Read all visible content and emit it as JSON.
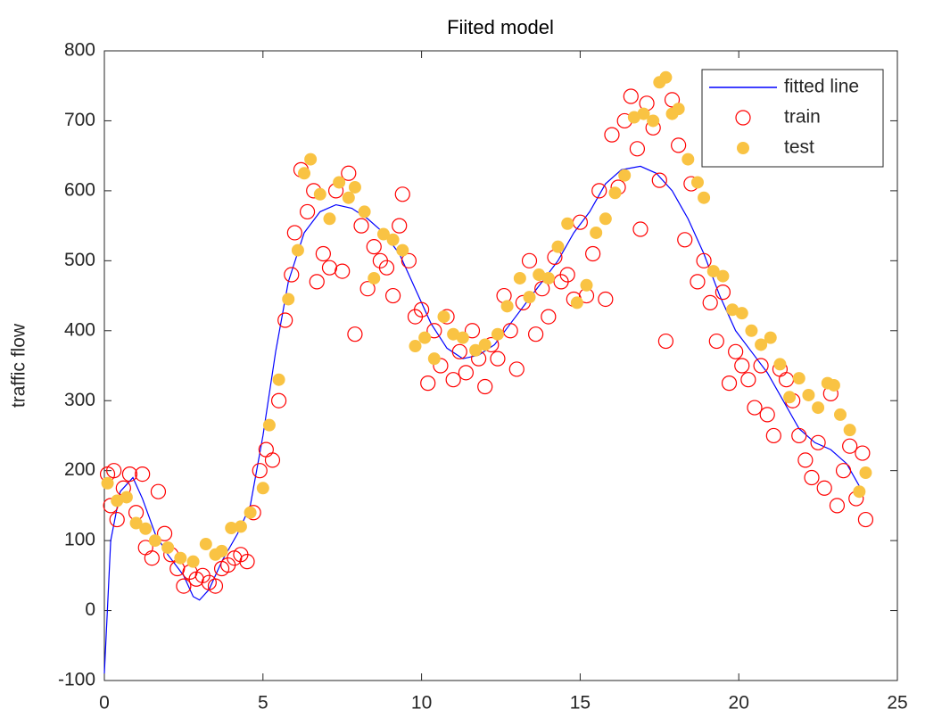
{
  "chart_data": {
    "type": "scatter",
    "title": "Fiited model",
    "ylabel": "traffic flow",
    "xlim": [
      0,
      25
    ],
    "xticks": [
      0,
      5,
      10,
      15,
      20,
      25
    ],
    "ylim": [
      -100,
      800
    ],
    "yticks": [
      -100,
      0,
      100,
      200,
      300,
      400,
      500,
      600,
      700,
      800
    ],
    "grid": false,
    "legend": "northeast",
    "series": [
      {
        "name": "fitted line",
        "kind": "line",
        "color": "#0000ff",
        "x": [
          0,
          0.2,
          0.5,
          0.9,
          1.2,
          1.6,
          2,
          2.5,
          2.8,
          3.0,
          3.3,
          3.7,
          4.2,
          4.6,
          5.0,
          5.4,
          5.8,
          6.3,
          6.8,
          7.3,
          7.8,
          8.3,
          8.8,
          9.3,
          9.8,
          10.3,
          10.8,
          11.3,
          11.8,
          12.3,
          12.8,
          13.3,
          13.8,
          14.3,
          14.8,
          15.3,
          15.8,
          16.3,
          16.9,
          17.4,
          17.9,
          18.4,
          18.9,
          19.4,
          19.9,
          20.4,
          20.9,
          21.4,
          21.9,
          22.4,
          22.9,
          23.4,
          23.9
        ],
        "values": [
          -90,
          100,
          170,
          190,
          160,
          110,
          80,
          50,
          20,
          15,
          30,
          70,
          110,
          150,
          250,
          370,
          470,
          540,
          570,
          580,
          575,
          560,
          540,
          510,
          460,
          410,
          375,
          360,
          365,
          380,
          410,
          440,
          470,
          500,
          540,
          570,
          610,
          630,
          635,
          625,
          600,
          560,
          510,
          450,
          400,
          370,
          340,
          300,
          260,
          240,
          230,
          210,
          170
        ]
      },
      {
        "name": "train",
        "kind": "open",
        "color": "#ff0000",
        "x": [
          0.1,
          0.2,
          0.3,
          0.4,
          0.6,
          0.8,
          1.0,
          1.2,
          1.3,
          1.5,
          1.7,
          1.9,
          2.1,
          2.3,
          2.5,
          2.7,
          2.9,
          3.1,
          3.3,
          3.5,
          3.7,
          3.9,
          4.1,
          4.3,
          4.5,
          4.7,
          4.9,
          5.1,
          5.3,
          5.5,
          5.7,
          5.9,
          6.0,
          6.2,
          6.4,
          6.6,
          6.7,
          6.9,
          7.1,
          7.3,
          7.5,
          7.7,
          7.9,
          8.1,
          8.3,
          8.5,
          8.7,
          8.9,
          9.1,
          9.3,
          9.4,
          9.6,
          9.8,
          10.0,
          10.2,
          10.4,
          10.6,
          10.8,
          11.0,
          11.2,
          11.4,
          11.6,
          11.8,
          12.0,
          12.2,
          12.4,
          12.6,
          12.8,
          13.0,
          13.2,
          13.4,
          13.6,
          13.8,
          14.0,
          14.2,
          14.4,
          14.6,
          14.8,
          15.0,
          15.2,
          15.4,
          15.6,
          15.8,
          16.0,
          16.2,
          16.4,
          16.6,
          16.8,
          16.9,
          17.1,
          17.3,
          17.5,
          17.7,
          17.9,
          18.1,
          18.3,
          18.5,
          18.7,
          18.9,
          19.1,
          19.3,
          19.5,
          19.7,
          19.9,
          20.1,
          20.3,
          20.5,
          20.7,
          20.9,
          21.1,
          21.3,
          21.5,
          21.7,
          21.9,
          22.1,
          22.3,
          22.5,
          22.7,
          22.9,
          23.1,
          23.3,
          23.5,
          23.7,
          23.9,
          24.0
        ],
        "values": [
          195,
          150,
          200,
          130,
          175,
          195,
          140,
          195,
          90,
          75,
          170,
          110,
          80,
          60,
          35,
          55,
          45,
          50,
          40,
          35,
          60,
          65,
          75,
          80,
          70,
          140,
          200,
          230,
          215,
          300,
          415,
          480,
          540,
          630,
          570,
          600,
          470,
          510,
          490,
          600,
          485,
          625,
          395,
          550,
          460,
          520,
          500,
          490,
          450,
          550,
          595,
          500,
          420,
          430,
          325,
          400,
          350,
          420,
          330,
          370,
          340,
          400,
          360,
          320,
          380,
          360,
          450,
          400,
          345,
          440,
          500,
          395,
          460,
          420,
          505,
          470,
          480,
          445,
          555,
          450,
          510,
          600,
          445,
          680,
          605,
          700,
          735,
          660,
          545,
          725,
          690,
          615,
          385,
          730,
          665,
          530,
          610,
          470,
          500,
          440,
          385,
          455,
          325,
          370,
          350,
          330,
          290,
          350,
          280,
          250,
          345,
          330,
          300,
          250,
          215,
          190,
          240,
          175,
          310,
          150,
          200,
          235,
          160,
          225,
          130
        ]
      },
      {
        "name": "test",
        "kind": "filled",
        "color": "#f9c343",
        "x": [
          0.1,
          0.4,
          0.7,
          1.0,
          1.3,
          1.6,
          2.0,
          2.4,
          2.8,
          3.2,
          3.5,
          3.7,
          4.0,
          4.3,
          4.6,
          5.0,
          5.2,
          5.5,
          5.8,
          6.1,
          6.3,
          6.5,
          6.8,
          7.1,
          7.4,
          7.7,
          7.9,
          8.2,
          8.5,
          8.8,
          9.1,
          9.4,
          9.8,
          10.1,
          10.4,
          10.7,
          11.0,
          11.3,
          11.7,
          12.0,
          12.4,
          12.7,
          13.1,
          13.4,
          13.7,
          14.0,
          14.3,
          14.6,
          14.9,
          15.2,
          15.5,
          15.8,
          16.1,
          16.4,
          16.7,
          17.0,
          17.3,
          17.5,
          17.7,
          17.9,
          18.1,
          18.4,
          18.7,
          18.9,
          19.2,
          19.5,
          19.8,
          20.1,
          20.4,
          20.7,
          21.0,
          21.3,
          21.6,
          21.9,
          22.2,
          22.5,
          22.8,
          23.0,
          23.2,
          23.5,
          23.8,
          24.0
        ],
        "values": [
          182,
          157,
          162,
          125,
          117,
          100,
          90,
          75,
          70,
          95,
          80,
          85,
          118,
          120,
          140,
          175,
          265,
          330,
          445,
          515,
          625,
          645,
          595,
          560,
          612,
          590,
          605,
          570,
          475,
          538,
          530,
          515,
          378,
          390,
          360,
          420,
          395,
          390,
          372,
          380,
          395,
          435,
          475,
          448,
          480,
          475,
          520,
          553,
          440,
          465,
          540,
          560,
          597,
          622,
          705,
          710,
          700,
          755,
          762,
          710,
          717,
          645,
          612,
          590,
          485,
          478,
          430,
          425,
          400,
          380,
          390,
          352,
          305,
          332,
          308,
          290,
          325,
          322,
          280,
          258,
          170,
          197
        ]
      }
    ]
  }
}
